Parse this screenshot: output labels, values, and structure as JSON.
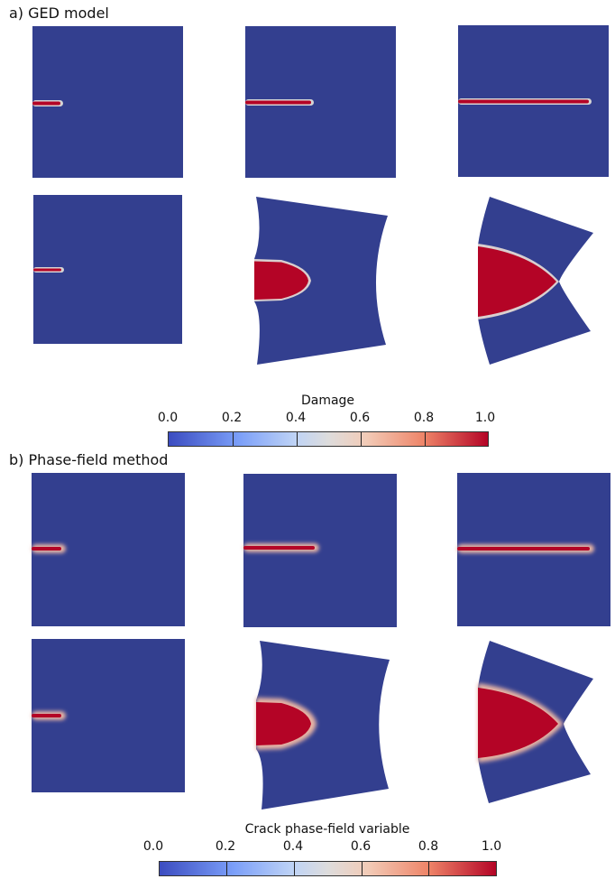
{
  "figure": {
    "section_a_title": "a) GED model",
    "section_b_title": "b) Phase-field method",
    "colorbar_a": {
      "title": "Damage",
      "ticks": [
        "0.0",
        "0.2",
        "0.4",
        "0.6",
        "0.8",
        "1.0"
      ],
      "range": [
        0.0,
        1.0
      ]
    },
    "colorbar_b": {
      "title": "Crack phase-field variable",
      "ticks": [
        "0.0",
        "0.2",
        "0.4",
        "0.6",
        "0.8",
        "1.0"
      ],
      "range": [
        0.0,
        1.0
      ]
    },
    "colors": {
      "background_field": "#333f8f",
      "crack_core": "#b40426",
      "crack_edge": "#d9d9d9"
    }
  }
}
